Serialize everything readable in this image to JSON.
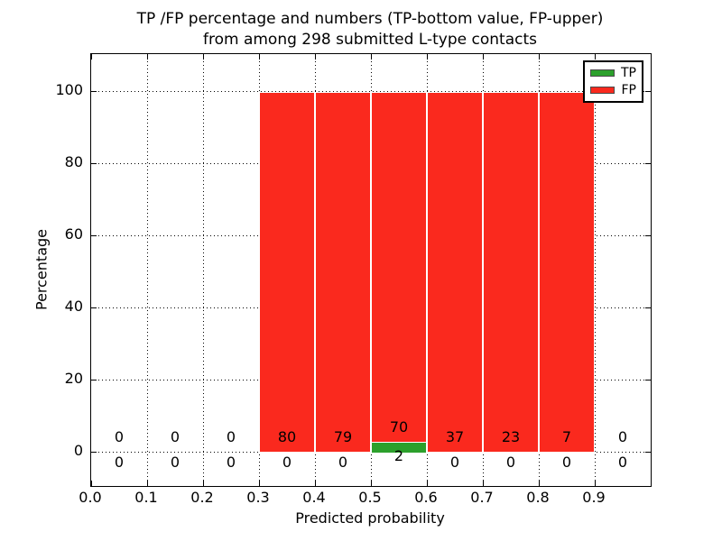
{
  "title": {
    "line1": "TP /FP percentage and numbers (TP-bottom value, FP-upper)",
    "line2": "from among 298 submitted L-type contacts"
  },
  "axes": {
    "xlabel": "Predicted probability",
    "ylabel": "Percentage",
    "x_ticks": [
      "0.0",
      "0.1",
      "0.2",
      "0.3",
      "0.4",
      "0.5",
      "0.6",
      "0.7",
      "0.8",
      "0.9"
    ],
    "y_ticks": [
      "0",
      "20",
      "40",
      "60",
      "80",
      "100"
    ]
  },
  "legend": {
    "items": [
      {
        "label": "TP",
        "color": "#2ca02c"
      },
      {
        "label": "FP",
        "color": "#fa291e"
      }
    ]
  },
  "chart_data": {
    "type": "bar",
    "stacked": true,
    "title": "TP /FP percentage and numbers (TP-bottom value, FP-upper) from among 298 submitted L-type contacts",
    "xlabel": "Predicted probability",
    "ylabel": "Percentage",
    "xlim": [
      0.0,
      1.0
    ],
    "ylim": [
      -10,
      110
    ],
    "grid": "dotted",
    "legend_position": "upper right",
    "bin_edges": [
      0.0,
      0.1,
      0.2,
      0.3,
      0.4,
      0.5,
      0.6,
      0.7,
      0.8,
      0.9,
      1.0
    ],
    "bin_centers": [
      0.05,
      0.15,
      0.25,
      0.35,
      0.45,
      0.55,
      0.65,
      0.75,
      0.85,
      0.95
    ],
    "series": [
      {
        "name": "TP",
        "color": "#2ca02c",
        "counts": [
          0,
          0,
          0,
          0,
          0,
          2,
          0,
          0,
          0,
          0
        ],
        "percent": [
          0,
          0,
          0,
          0,
          0,
          2.78,
          0,
          0,
          0,
          0
        ]
      },
      {
        "name": "FP",
        "color": "#fa291e",
        "counts": [
          0,
          0,
          0,
          80,
          79,
          70,
          37,
          23,
          7,
          0
        ],
        "percent": [
          0,
          0,
          0,
          100,
          100,
          97.22,
          100,
          100,
          100,
          0
        ]
      }
    ]
  }
}
